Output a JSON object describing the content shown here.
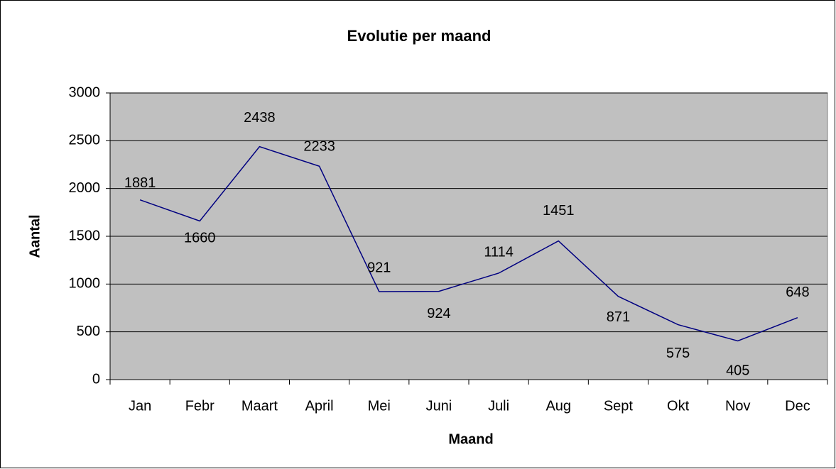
{
  "chart_data": {
    "type": "line",
    "title": "Evolutie per maand",
    "x_label": "Maand",
    "y_label": "Aantal",
    "categories": [
      "Jan",
      "Febr",
      "Maart",
      "April",
      "Mei",
      "Juni",
      "Juli",
      "Aug",
      "Sept",
      "Okt",
      "Nov",
      "Dec"
    ],
    "series": [
      {
        "name": "Aantal",
        "color": "#000080",
        "values": [
          1881,
          1660,
          2438,
          2233,
          921,
          924,
          1114,
          1451,
          871,
          575,
          405,
          648
        ]
      }
    ],
    "ylim": [
      0,
      3000
    ],
    "yticks": [
      0,
      500,
      1000,
      1500,
      2000,
      2500,
      3000
    ],
    "grid": true,
    "plot_background": "#c0c0c0"
  }
}
